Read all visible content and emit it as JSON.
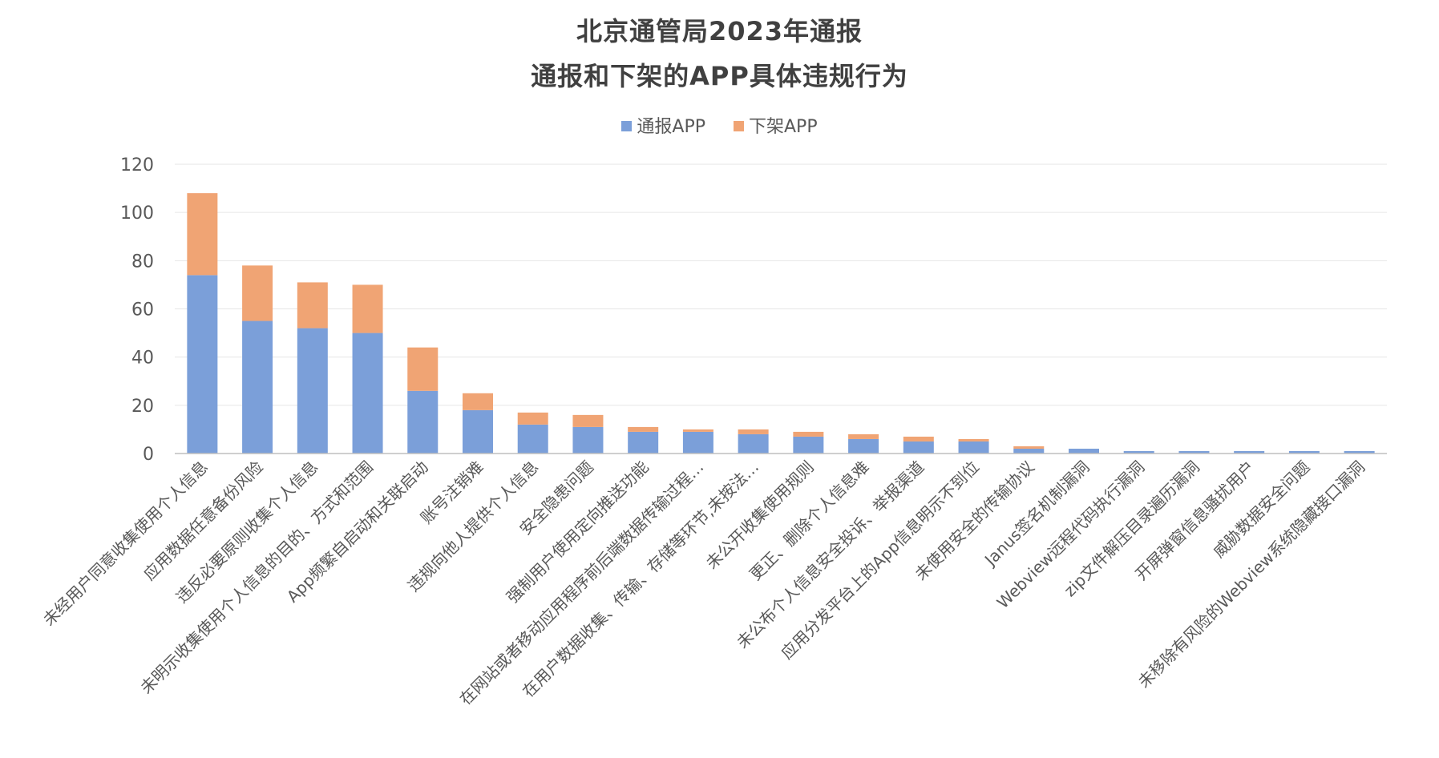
{
  "chart_data": {
    "type": "bar",
    "stacked": true,
    "title": "北京通管局2023年通报",
    "subtitle": "通报和下架的APP具体违规行为",
    "xlabel": "",
    "ylabel": "",
    "ylim": [
      0,
      120
    ],
    "yticks": [
      0,
      20,
      40,
      60,
      80,
      100,
      120
    ],
    "grid": true,
    "legend_position": "top",
    "categories": [
      "未经用户同意收集使用个人信息",
      "应用数据任意备份风险",
      "违反必要原则收集个人信息",
      "未明示收集使用个人信息的目的、方式和范围",
      "App频繁自启动和关联启动",
      "账号注销难",
      "违规向他人提供个人信息",
      "安全隐患问题",
      "强制用户使用定向推送功能",
      "在网站或者移动应用程序前后端数据传输过程…",
      "在用户数据收集、传输、存储等环节,未按法…",
      "未公开收集使用规则",
      "更正、删除个人信息难",
      "未公布个人信息安全投诉、举报渠道",
      "应用分发平台上的App信息明示不到位",
      "未使用安全的传输协议",
      "Janus签名机制漏洞",
      "Webview远程代码执行漏洞",
      "zip文件解压目录遍历漏洞",
      "开屏弹窗信息骚扰用户",
      "威胁数据安全问题",
      "未移除有风险的Webview系统隐藏接口漏洞"
    ],
    "series": [
      {
        "name": "通报APP",
        "color": "#7b9fd9",
        "values": [
          74,
          55,
          52,
          50,
          26,
          18,
          12,
          11,
          9,
          9,
          8,
          7,
          6,
          5,
          5,
          2,
          2,
          1,
          1,
          1,
          1,
          1
        ]
      },
      {
        "name": "下架APP",
        "color": "#f0a474",
        "values": [
          34,
          23,
          19,
          20,
          18,
          7,
          5,
          5,
          2,
          1,
          2,
          2,
          2,
          2,
          1,
          1,
          0,
          0,
          0,
          0,
          0,
          0
        ]
      }
    ]
  }
}
